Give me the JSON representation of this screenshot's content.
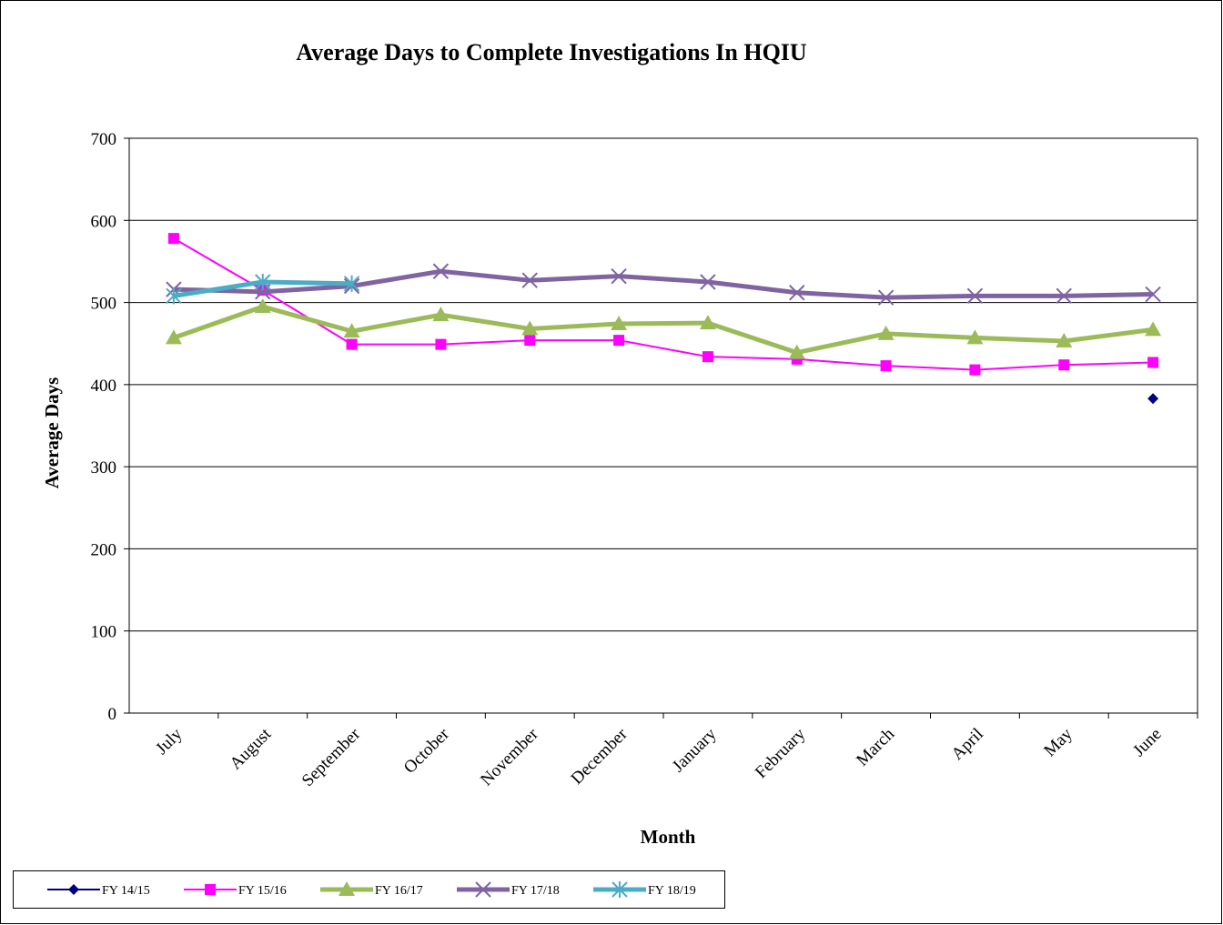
{
  "chart_data": {
    "type": "line",
    "title": "Average Days to Complete Investigations In HQIU",
    "x_label": "Month",
    "y_label": "Average Days",
    "categories": [
      "July",
      "August",
      "September",
      "October",
      "November",
      "December",
      "January",
      "February",
      "March",
      "April",
      "May",
      "June"
    ],
    "series": [
      {
        "name": "FY 14/15",
        "color": "#000080",
        "marker": "diamond",
        "values": [
          null,
          null,
          null,
          null,
          null,
          null,
          null,
          null,
          null,
          null,
          null,
          383
        ]
      },
      {
        "name": "FY 15/16",
        "color": "#ff00ff",
        "marker": "square",
        "values": [
          578,
          515,
          449,
          449,
          454,
          454,
          434,
          431,
          423,
          418,
          424,
          427
        ]
      },
      {
        "name": "FY 16/17",
        "color": "#9bbb59",
        "marker": "triangle",
        "values": [
          457,
          495,
          465,
          485,
          468,
          474,
          475,
          439,
          462,
          457,
          453,
          467
        ]
      },
      {
        "name": "FY 17/18",
        "color": "#8064a2",
        "marker": "x",
        "values": [
          516,
          513,
          520,
          538,
          527,
          532,
          525,
          512,
          506,
          508,
          508,
          510
        ]
      },
      {
        "name": "FY 18/19",
        "color": "#4bacc6",
        "marker": "star",
        "values": [
          508,
          525,
          523,
          null,
          null,
          null,
          null,
          null,
          null,
          null,
          null,
          null
        ]
      }
    ],
    "ylim": [
      0,
      700
    ],
    "yticks": [
      0,
      100,
      200,
      300,
      400,
      500,
      600,
      700
    ],
    "grid": true,
    "legend": "bottom-left"
  }
}
